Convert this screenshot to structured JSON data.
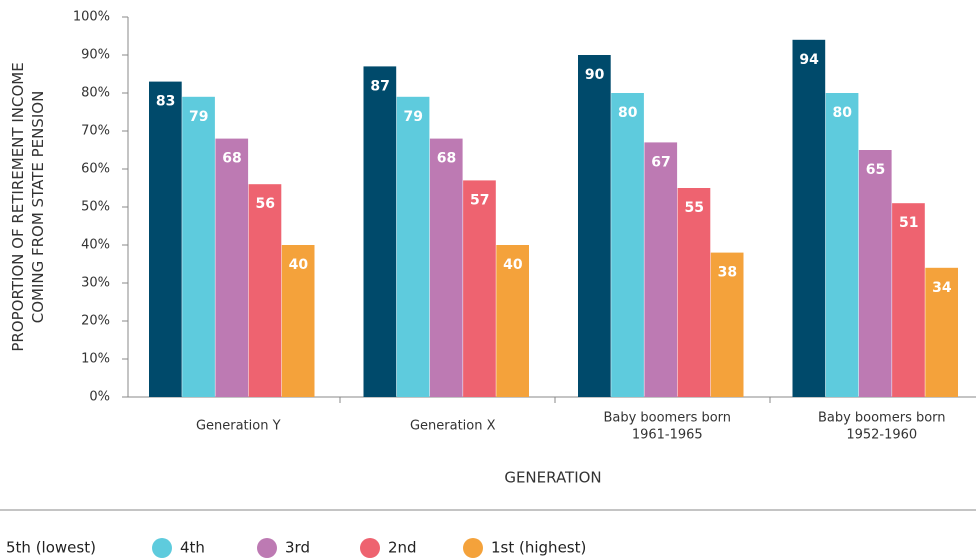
{
  "chart_data": {
    "type": "bar",
    "y_label": "PROPORTION OF RETIREMENT INCOME\nCOMING FROM STATE PENSION",
    "x_label": "GENERATION",
    "categories": [
      "Generation Y",
      "Generation X",
      "Baby boomers born\n1961-1965",
      "Baby boomers born\n1952-1960"
    ],
    "series": [
      {
        "name": "5th (lowest)",
        "color": "#004a6b",
        "values": [
          83,
          87,
          90,
          94
        ]
      },
      {
        "name": "4th",
        "color": "#5ecbdd",
        "values": [
          79,
          79,
          80,
          80
        ]
      },
      {
        "name": "3rd",
        "color": "#bd7ab3",
        "values": [
          68,
          68,
          67,
          65
        ]
      },
      {
        "name": "2nd",
        "color": "#ee6370",
        "values": [
          56,
          57,
          55,
          51
        ]
      },
      {
        "name": "1st (highest)",
        "color": "#f4a23b",
        "values": [
          40,
          40,
          38,
          34
        ]
      }
    ],
    "ylim": [
      0,
      100
    ],
    "yticks": [
      {
        "value": 0,
        "label": "0%"
      },
      {
        "value": 10,
        "label": "10%"
      },
      {
        "value": 20,
        "label": "20%"
      },
      {
        "value": 30,
        "label": "30%"
      },
      {
        "value": 40,
        "label": "40%"
      },
      {
        "value": 50,
        "label": "50%"
      },
      {
        "value": 60,
        "label": "60%"
      },
      {
        "value": 70,
        "label": "70%"
      },
      {
        "value": 80,
        "label": "80%"
      },
      {
        "value": 90,
        "label": "90%"
      },
      {
        "value": 100,
        "label": "100%"
      }
    ],
    "legend": "bottom"
  }
}
